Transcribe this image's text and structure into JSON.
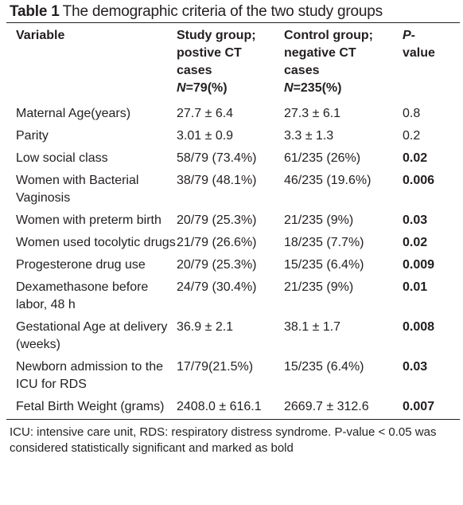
{
  "table": {
    "caption_label": "Table 1",
    "caption_text": "The demographic criteria of the two study groups",
    "headers": {
      "variable": "Variable",
      "study_line1": "Study group;",
      "study_line2": "postive CT",
      "study_line3": "cases",
      "study_n_label": "N",
      "study_n_value": "=79(%)",
      "control_line1": "Control group;",
      "control_line2": "negative CT",
      "control_line3": "cases",
      "control_n_label": "N",
      "control_n_value": "=235(%)",
      "p_line1": "P-",
      "p_line2": "value"
    },
    "rows": [
      {
        "variable": "Maternal Age(years)",
        "study": "27.7 ± 6.4",
        "control": "27.3 ± 6.1",
        "p": "0.8",
        "p_bold": false
      },
      {
        "variable": "Parity",
        "study": "3.01 ± 0.9",
        "control": "3.3 ± 1.3",
        "p": "0.2",
        "p_bold": false
      },
      {
        "variable": "Low social class",
        "study": "58/79 (73.4%)",
        "control": "61/235 (26%)",
        "p": "0.02",
        "p_bold": true
      },
      {
        "variable": "Women with Bacterial Vaginosis",
        "study": "38/79 (48.1%)",
        "control": "46/235 (19.6%)",
        "p": "0.006",
        "p_bold": true
      },
      {
        "variable": "Women with preterm birth",
        "study": "20/79 (25.3%)",
        "control": "21/235 (9%)",
        "p": "0.03",
        "p_bold": true
      },
      {
        "variable": "Women used tocolytic drugs",
        "study": "21/79 (26.6%)",
        "control": "18/235 (7.7%)",
        "p": "0.02",
        "p_bold": true
      },
      {
        "variable": "Progesterone drug use",
        "study": "20/79 (25.3%)",
        "control": "15/235 (6.4%)",
        "p": "0.009",
        "p_bold": true
      },
      {
        "variable": "Dexamethasone before labor, 48 h",
        "study": "24/79 (30.4%)",
        "control": "21/235 (9%)",
        "p": "0.01",
        "p_bold": true
      },
      {
        "variable": "Gestational Age at delivery (weeks)",
        "study": "36.9 ± 2.1",
        "control": "38.1 ± 1.7",
        "p": "0.008",
        "p_bold": true
      },
      {
        "variable": "Newborn admission to the ICU for RDS",
        "study": "17/79(21.5%)",
        "control": "15/235 (6.4%)",
        "p": "0.03",
        "p_bold": true
      },
      {
        "variable": "Fetal Birth Weight (grams)",
        "study": "2408.0 ± 616.1",
        "control": "2669.7 ± 312.6",
        "p": "0.007",
        "p_bold": true
      }
    ],
    "footnote": "ICU: intensive care unit, RDS: respiratory distress syndrome. P-value < 0.05 was considered statistically significant and marked as bold"
  }
}
